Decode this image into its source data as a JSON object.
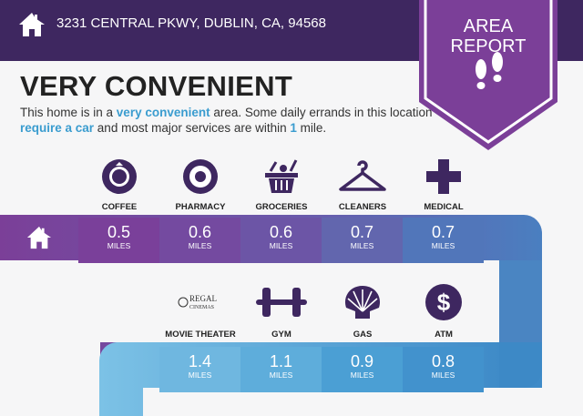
{
  "header": {
    "address": "3231 CENTRAL PKWY, DUBLIN, CA, 94568",
    "badge_line1": "AREA",
    "badge_line2": "REPORT"
  },
  "title": "VERY CONVENIENT",
  "description": {
    "p1": "This home is in a ",
    "h1": "very convenient",
    "p2": " area. Some daily errands in this location ",
    "h2": "require a car",
    "p3": " and most major services are within ",
    "h3": "1",
    "p4": " mile."
  },
  "row1": [
    {
      "label": "COFFEE",
      "value": "0.5",
      "unit": "MILES",
      "icon": "starbucks-icon"
    },
    {
      "label": "PHARMACY",
      "value": "0.6",
      "unit": "MILES",
      "icon": "target-icon"
    },
    {
      "label": "GROCERIES",
      "value": "0.6",
      "unit": "MILES",
      "icon": "basket-icon"
    },
    {
      "label": "CLEANERS",
      "value": "0.7",
      "unit": "MILES",
      "icon": "hanger-icon"
    },
    {
      "label": "MEDICAL",
      "value": "0.7",
      "unit": "MILES",
      "icon": "cross-icon"
    }
  ],
  "row2": [
    {
      "label": "MOVIE THEATER",
      "value": "1.4",
      "unit": "MILES",
      "icon": "regal-cinemas-logo",
      "logo_text": "REGAL CINEMAS"
    },
    {
      "label": "GYM",
      "value": "1.1",
      "unit": "MILES",
      "icon": "dumbbell-icon"
    },
    {
      "label": "GAS",
      "value": "0.9",
      "unit": "MILES",
      "icon": "shell-icon"
    },
    {
      "label": "ATM",
      "value": "0.8",
      "unit": "MILES",
      "icon": "dollar-icon"
    }
  ],
  "colors": {
    "header": "#3e2760",
    "ribbon": "#7b3f98",
    "icon": "#3e2760",
    "highlight": "#3a9ccf"
  }
}
